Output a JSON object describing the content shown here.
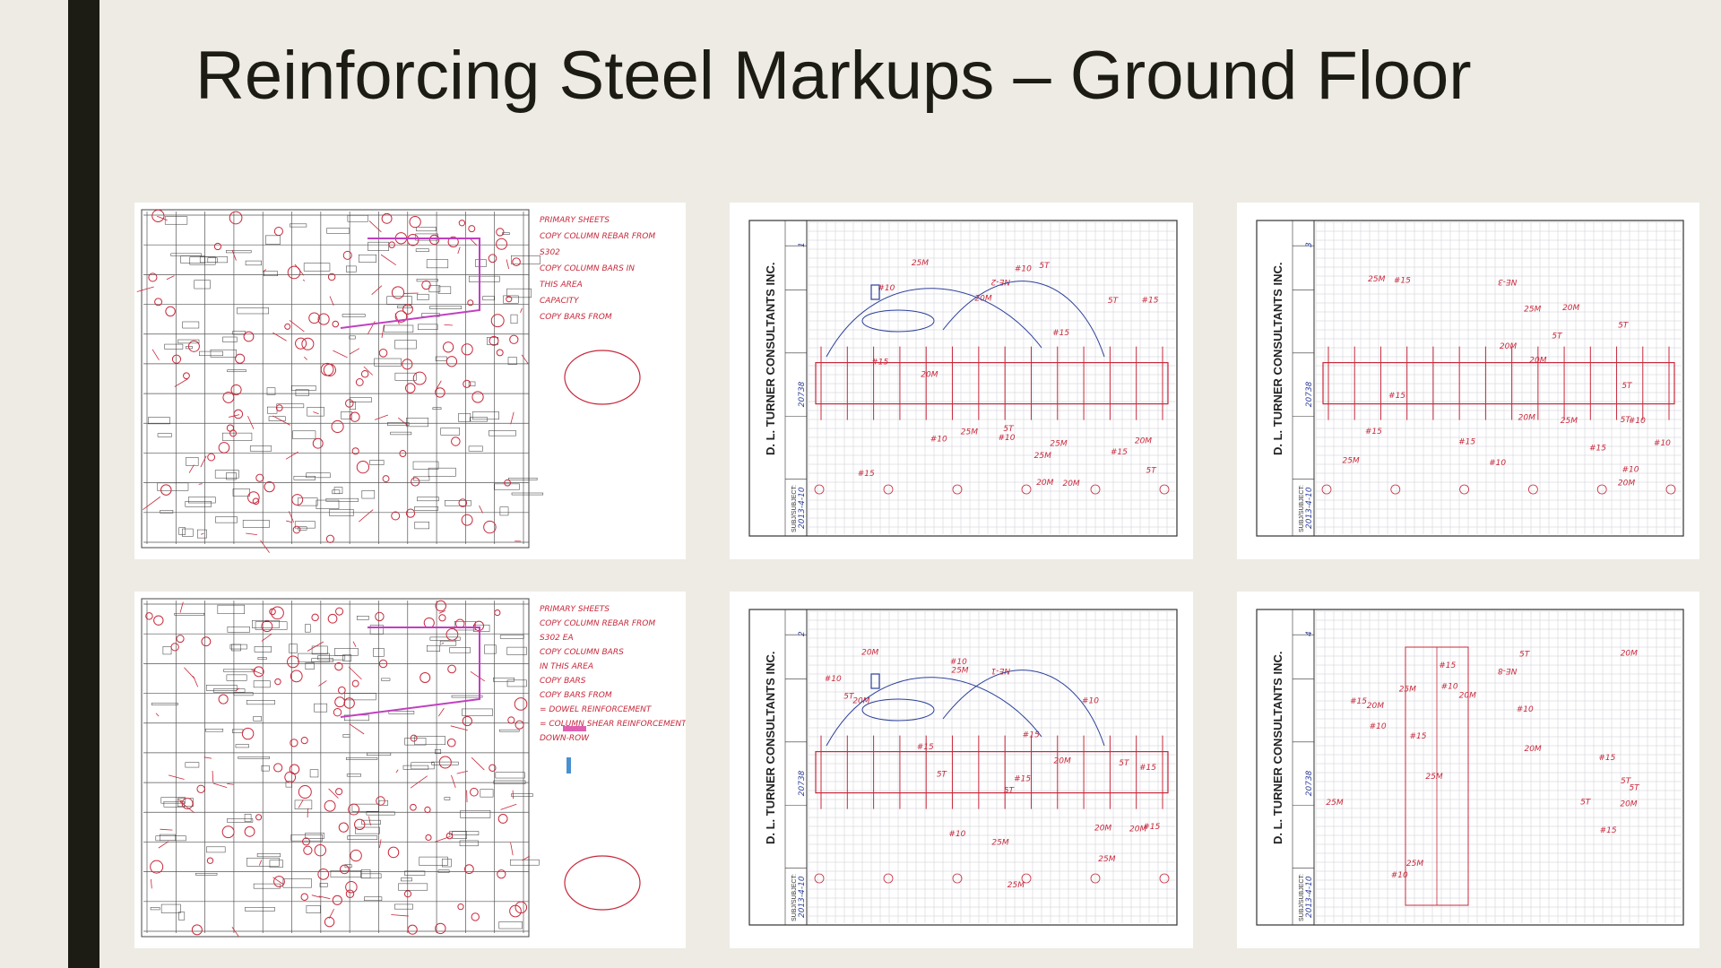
{
  "slide": {
    "title": "Reinforcing Steel Markups – Ground Floor"
  },
  "sheets": [
    {
      "kind": "plan",
      "notes": [
        "PRIMARY SHEETS",
        "COPY COLUMN REBAR FROM",
        "S302",
        "COPY COLUMN BARS IN",
        "THIS AREA",
        "CAPACITY",
        "COPY BARS FROM"
      ]
    },
    {
      "kind": "grid",
      "firm": "D. L. TURNER CONSULTANTS INC.",
      "subject_label": "SUBJ/SUBJECT:",
      "page": "1",
      "date": "2013-4-10",
      "project_no": "20738",
      "drawing": "NE-2"
    },
    {
      "kind": "grid",
      "firm": "D. L. TURNER CONSULTANTS INC.",
      "subject_label": "SUBJ/SUBJECT:",
      "page": "3",
      "date": "2013-4-10",
      "project_no": "20738",
      "drawing": "NE-3"
    },
    {
      "kind": "plan",
      "notes": [
        "PRIMARY SHEETS",
        "COPY COLUMN REBAR FROM",
        "S302 EA",
        "COPY COLUMN BARS",
        "IN THIS AREA",
        "COPY BARS",
        "COPY BARS FROM",
        "= DOWEL REINFORCEMENT",
        "= COLUMN SHEAR REINFORCEMENT",
        "DOWN-ROW"
      ]
    },
    {
      "kind": "grid",
      "firm": "D. L. TURNER CONSULTANTS INC.",
      "subject_label": "SUBJ/SUBJECT:",
      "page": "2",
      "date": "2013-4-10",
      "project_no": "20738",
      "drawing": "NE-1"
    },
    {
      "kind": "grid",
      "firm": "D. L. TURNER CONSULTANTS INC.",
      "subject_label": "SUBJ/SUBJECT:",
      "page": "4",
      "date": "2013-4-10",
      "project_no": "20738",
      "drawing": "NE-8"
    }
  ],
  "colors": {
    "background": "#edebe3",
    "bar": "#1c1c14",
    "markup_red": "#c8283a",
    "markup_blue": "#2c3f9a",
    "grid": "#c9cdd6"
  }
}
